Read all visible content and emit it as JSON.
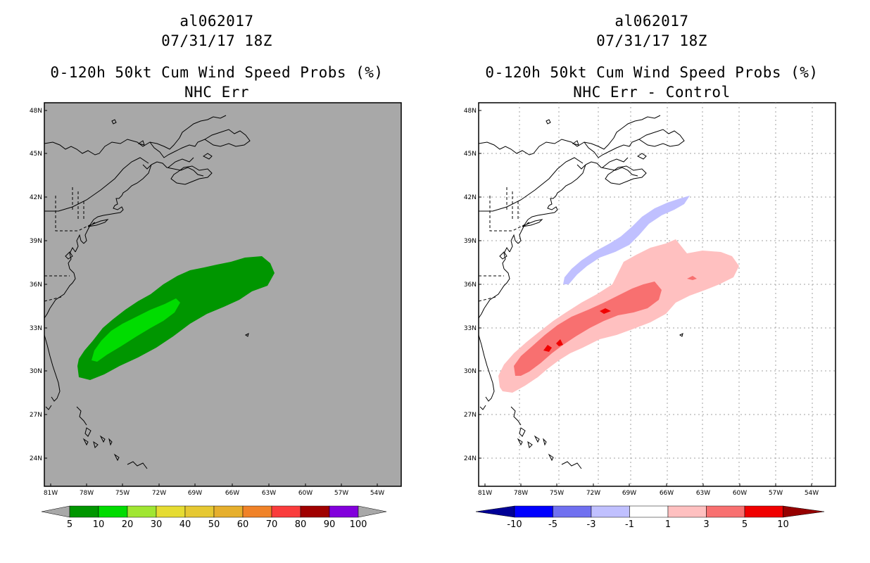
{
  "left_panel": {
    "storm_id": "al062017",
    "datetime": "07/31/17 18Z",
    "product": "0-120h 50kt Cum Wind Speed Probs (%)",
    "subtitle": "NHC Err",
    "ocean_color": "#a8a8a8",
    "colorbar": {
      "colors": [
        "#009600",
        "#00dc00",
        "#a0e632",
        "#e6dc32",
        "#e6c832",
        "#e6af2d",
        "#f08228",
        "#fa3c3c",
        "#a00000",
        "#8200dc"
      ],
      "edge_color": "#a8a8a8",
      "labels": [
        "5",
        "10",
        "20",
        "30",
        "40",
        "50",
        "60",
        "70",
        "80",
        "90",
        "100"
      ]
    }
  },
  "right_panel": {
    "storm_id": "al062017",
    "datetime": "07/31/17 18Z",
    "product": "0-120h 50kt Cum Wind Speed Probs (%)",
    "subtitle": "NHC Err - Control",
    "ocean_color": "#ffffff",
    "colorbar": {
      "colors": [
        "#0000ff",
        "#7070f0",
        "#c0c0ff",
        "#ffffff",
        "#ffc0c0",
        "#f87070",
        "#f00000"
      ],
      "low_color": "#000096",
      "high_color": "#960000",
      "labels": [
        "-10",
        "-5",
        "-3",
        "-1",
        "1",
        "3",
        "5",
        "10"
      ]
    }
  },
  "lat_labels": [
    "48N",
    "45N",
    "42N",
    "39N",
    "36N",
    "33N",
    "30N",
    "27N",
    "24N"
  ],
  "lon_labels": [
    "81W",
    "78W",
    "75W",
    "72W",
    "69W",
    "66W",
    "63W",
    "60W",
    "57W",
    "54W"
  ]
}
